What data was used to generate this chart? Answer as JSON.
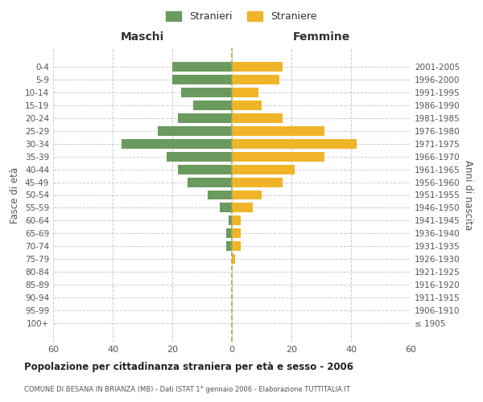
{
  "age_groups": [
    "100+",
    "95-99",
    "90-94",
    "85-89",
    "80-84",
    "75-79",
    "70-74",
    "65-69",
    "60-64",
    "55-59",
    "50-54",
    "45-49",
    "40-44",
    "35-39",
    "30-34",
    "25-29",
    "20-24",
    "15-19",
    "10-14",
    "5-9",
    "0-4"
  ],
  "birth_years": [
    "≤ 1905",
    "1906-1910",
    "1911-1915",
    "1916-1920",
    "1921-1925",
    "1926-1930",
    "1931-1935",
    "1936-1940",
    "1941-1945",
    "1946-1950",
    "1951-1955",
    "1956-1960",
    "1961-1965",
    "1966-1970",
    "1971-1975",
    "1976-1980",
    "1981-1985",
    "1986-1990",
    "1991-1995",
    "1996-2000",
    "2001-2005"
  ],
  "maschi": [
    0,
    0,
    0,
    0,
    0,
    0,
    2,
    2,
    1,
    4,
    8,
    15,
    18,
    22,
    37,
    25,
    18,
    13,
    17,
    20,
    20
  ],
  "femmine": [
    0,
    0,
    0,
    0,
    0,
    1,
    3,
    3,
    3,
    7,
    10,
    17,
    21,
    31,
    42,
    31,
    17,
    10,
    9,
    16,
    17
  ],
  "color_maschi": "#6b9a5e",
  "color_femmine": "#f0b429",
  "background_color": "#ffffff",
  "grid_color": "#cccccc",
  "title": "Popolazione per cittadinanza straniera per età e sesso - 2006",
  "subtitle": "COMUNE DI BESANA IN BRIANZA (MB) - Dati ISTAT 1° gennaio 2006 - Elaborazione TUTTITALIA.IT",
  "xlabel_left": "Maschi",
  "xlabel_right": "Femmine",
  "ylabel_left": "Fasce di età",
  "ylabel_right": "Anni di nascita",
  "legend_maschi": "Stranieri",
  "legend_femmine": "Straniere",
  "xlim": 60
}
